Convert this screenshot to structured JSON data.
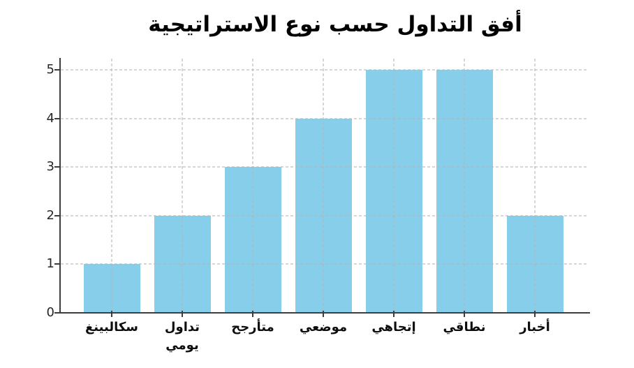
{
  "chart_data": {
    "type": "bar",
    "title": "أفق التداول حسب نوع الاستراتيجية",
    "categories": [
      "سكالبينغ",
      "تداول\nيومي",
      "متأرجح",
      "موضعي",
      "إتجاهي",
      "نطاقي",
      "أخبار"
    ],
    "category_slugs": [
      "scalping",
      "day-trading",
      "swing",
      "position",
      "directional",
      "range",
      "news"
    ],
    "category_order": "left-to-right-as-displayed",
    "values": [
      1,
      2,
      3,
      4,
      5,
      5,
      2
    ],
    "xlabel": "",
    "ylabel": "",
    "ylim": [
      0,
      5
    ],
    "yticks": [
      0,
      1,
      2,
      3,
      4,
      5
    ],
    "grid": "dotted horizontal and vertical, drawn over bars",
    "legend": "none",
    "bar_color": "#87CEEB",
    "axis_color": "#3d3d3d",
    "grid_color": "#d9d9d9",
    "text_color": "#0d0d0d",
    "background_color": "#ffffff"
  }
}
